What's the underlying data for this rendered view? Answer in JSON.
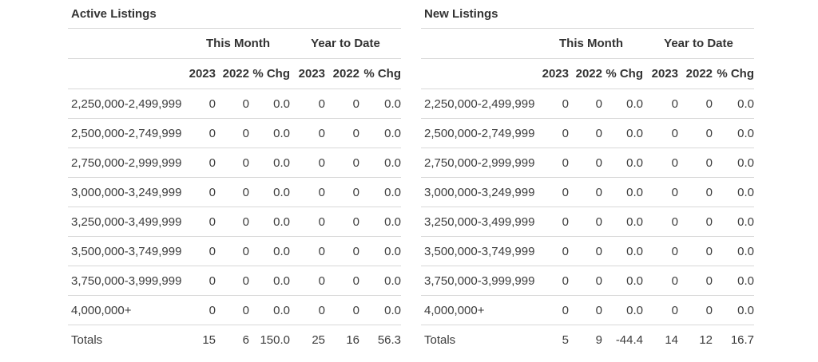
{
  "colors": {
    "background": "#ffffff",
    "text": "#3c3c3c",
    "header_text": "#333333",
    "divider": "#d8d8d8"
  },
  "tables": [
    {
      "title": "Active Listings",
      "group_headers": [
        "This Month",
        "Year to Date"
      ],
      "col_headers": [
        "2023",
        "2022",
        "% Chg",
        "2023",
        "2022",
        "% Chg"
      ],
      "rows": [
        {
          "label": "2,250,000-2,499,999",
          "values": [
            "0",
            "0",
            "0.0",
            "0",
            "0",
            "0.0"
          ]
        },
        {
          "label": "2,500,000-2,749,999",
          "values": [
            "0",
            "0",
            "0.0",
            "0",
            "0",
            "0.0"
          ]
        },
        {
          "label": "2,750,000-2,999,999",
          "values": [
            "0",
            "0",
            "0.0",
            "0",
            "0",
            "0.0"
          ]
        },
        {
          "label": "3,000,000-3,249,999",
          "values": [
            "0",
            "0",
            "0.0",
            "0",
            "0",
            "0.0"
          ]
        },
        {
          "label": "3,250,000-3,499,999",
          "values": [
            "0",
            "0",
            "0.0",
            "0",
            "0",
            "0.0"
          ]
        },
        {
          "label": "3,500,000-3,749,999",
          "values": [
            "0",
            "0",
            "0.0",
            "0",
            "0",
            "0.0"
          ]
        },
        {
          "label": "3,750,000-3,999,999",
          "values": [
            "0",
            "0",
            "0.0",
            "0",
            "0",
            "0.0"
          ]
        },
        {
          "label": "4,000,000+",
          "values": [
            "0",
            "0",
            "0.0",
            "0",
            "0",
            "0.0"
          ]
        }
      ],
      "totals": {
        "label": "Totals",
        "values": [
          "15",
          "6",
          "150.0",
          "25",
          "16",
          "56.3"
        ]
      }
    },
    {
      "title": "New Listings",
      "group_headers": [
        "This Month",
        "Year to Date"
      ],
      "col_headers": [
        "2023",
        "2022",
        "% Chg",
        "2023",
        "2022",
        "% Chg"
      ],
      "rows": [
        {
          "label": "2,250,000-2,499,999",
          "values": [
            "0",
            "0",
            "0.0",
            "0",
            "0",
            "0.0"
          ]
        },
        {
          "label": "2,500,000-2,749,999",
          "values": [
            "0",
            "0",
            "0.0",
            "0",
            "0",
            "0.0"
          ]
        },
        {
          "label": "2,750,000-2,999,999",
          "values": [
            "0",
            "0",
            "0.0",
            "0",
            "0",
            "0.0"
          ]
        },
        {
          "label": "3,000,000-3,249,999",
          "values": [
            "0",
            "0",
            "0.0",
            "0",
            "0",
            "0.0"
          ]
        },
        {
          "label": "3,250,000-3,499,999",
          "values": [
            "0",
            "0",
            "0.0",
            "0",
            "0",
            "0.0"
          ]
        },
        {
          "label": "3,500,000-3,749,999",
          "values": [
            "0",
            "0",
            "0.0",
            "0",
            "0",
            "0.0"
          ]
        },
        {
          "label": "3,750,000-3,999,999",
          "values": [
            "0",
            "0",
            "0.0",
            "0",
            "0",
            "0.0"
          ]
        },
        {
          "label": "4,000,000+",
          "values": [
            "0",
            "0",
            "0.0",
            "0",
            "0",
            "0.0"
          ]
        }
      ],
      "totals": {
        "label": "Totals",
        "values": [
          "5",
          "9",
          "-44.4",
          "14",
          "12",
          "16.7"
        ]
      }
    }
  ]
}
